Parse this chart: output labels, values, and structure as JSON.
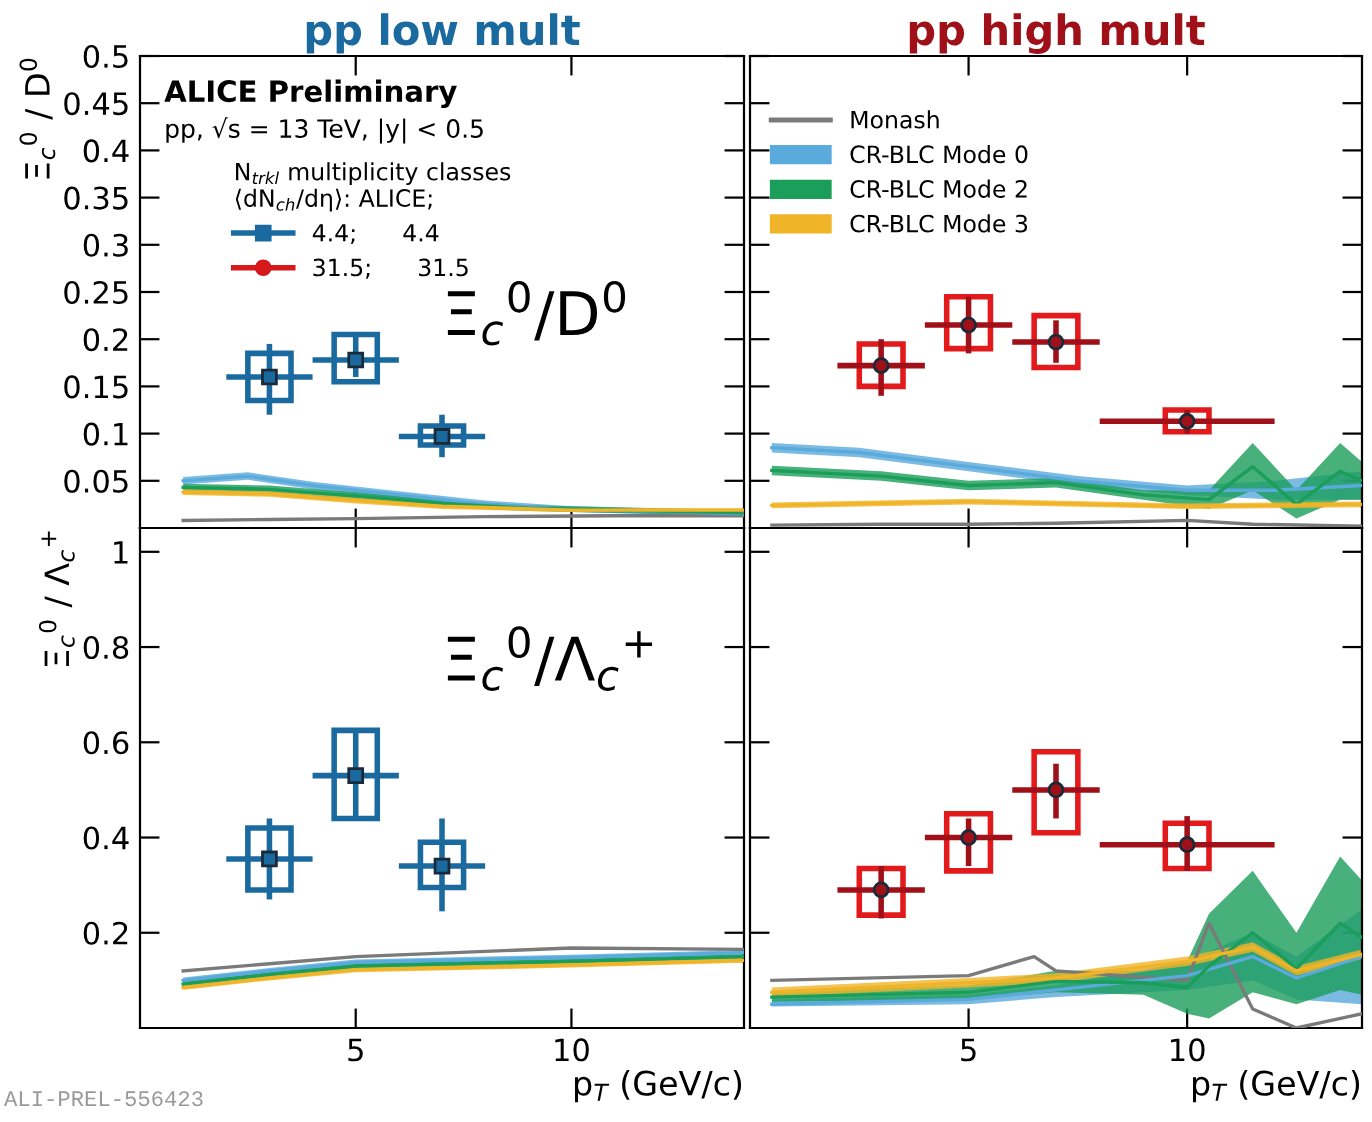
{
  "chart_data": [
    {
      "type": "scatter",
      "title": "pp low mult",
      "ylabel": "Ξ$_{c}$$^{0}$ / D$^{0}$",
      "legend": "top left",
      "legend_title": "N$_{trkl}$ multiplicity classes\n⟨dN$_{ch}$/dη⟩: ALICE;",
      "tick_labels": "y",
      "xlim": [
        0,
        14
      ],
      "xticks": [
        5,
        10
      ],
      "ylim": [
        0,
        0.5
      ],
      "yticks": [
        0.05,
        0.1,
        0.15,
        0.2,
        0.25,
        0.3,
        0.35,
        0.4,
        0.45,
        0.5
      ],
      "annotations": [
        "ALICE Preliminary",
        "pp, √s = 13 TeV, |y| < 0.5",
        "Ξ$_{c}$$^{0}$/D$^{0}$"
      ],
      "series": [
        {
          "type": "bar",
          "color": "#1a6aa0",
          "x": [
            3,
            5,
            7
          ],
          "base": [
            0.135,
            0.155,
            0.088
          ],
          "values": [
            0.05,
            0.05,
            0.02
          ]
        },
        {
          "name": "4.4;      4.4",
          "color": "#1a6aa0",
          "marker": "square",
          "x": [
            3,
            5,
            7
          ],
          "values": [
            0.16,
            0.178,
            0.097
          ],
          "errors": [
            [
              0.12,
              0.195
            ],
            [
              0.16,
              0.205
            ],
            [
              0.075,
              0.12
            ]
          ],
          "xerrors": [
            [
              2,
              4
            ],
            [
              4,
              6
            ],
            [
              6,
              8
            ]
          ]
        },
        {
          "name": "31.5;      31.5",
          "color": "#d7191c",
          "marker": "circle"
        },
        {
          "type": "line",
          "color": "#7a7a7a",
          "x": [
            1,
            3,
            5,
            8,
            11,
            14
          ],
          "values": [
            0.008,
            0.009,
            0.01,
            0.012,
            0.013,
            0.013
          ]
        },
        {
          "type": "line",
          "color": "#5aaadc",
          "x": [
            1,
            2.5,
            4,
            6,
            8,
            10,
            14
          ],
          "values": [
            0.05,
            0.055,
            0.045,
            0.035,
            0.025,
            0.02,
            0.015
          ],
          "lower": [
            0.046,
            0.051,
            0.041,
            0.031,
            0.021,
            0.017,
            0.012
          ],
          "upper": [
            0.054,
            0.059,
            0.049,
            0.039,
            0.029,
            0.023,
            0.018
          ]
        },
        {
          "type": "line",
          "color": "#1a9e5a",
          "x": [
            1,
            3,
            5,
            7,
            9,
            14
          ],
          "values": [
            0.043,
            0.041,
            0.034,
            0.026,
            0.021,
            0.016
          ],
          "lower": [
            0.039,
            0.037,
            0.03,
            0.022,
            0.018,
            0.013
          ],
          "upper": [
            0.047,
            0.045,
            0.038,
            0.03,
            0.024,
            0.019
          ]
        },
        {
          "type": "line",
          "color": "#f0b429",
          "x": [
            1,
            3,
            5,
            7,
            10,
            14
          ],
          "values": [
            0.038,
            0.036,
            0.029,
            0.023,
            0.019,
            0.019
          ],
          "lower": [
            0.035,
            0.033,
            0.026,
            0.02,
            0.017,
            0.017
          ],
          "upper": [
            0.041,
            0.039,
            0.032,
            0.026,
            0.021,
            0.021
          ]
        }
      ]
    },
    {
      "type": "scatter",
      "title": "pp high mult",
      "legend": "top left",
      "tick_labels": false,
      "xlim": [
        0,
        14
      ],
      "xticks": [
        5,
        10
      ],
      "ylim": [
        0,
        0.5
      ],
      "yticks": [
        0.05,
        0.1,
        0.15,
        0.2,
        0.25,
        0.3,
        0.35,
        0.4,
        0.45,
        0.5
      ],
      "series": [
        {
          "type": "bar",
          "color": "#e31a1c",
          "x": [
            3,
            5,
            7,
            10
          ],
          "base": [
            0.15,
            0.19,
            0.17,
            0.102
          ],
          "values": [
            0.045,
            0.055,
            0.055,
            0.023
          ]
        },
        {
          "color": "#a01018",
          "marker": "circle",
          "x": [
            3,
            5,
            7,
            10
          ],
          "values": [
            0.172,
            0.215,
            0.197,
            0.113
          ],
          "errors": [
            [
              0.14,
              0.2
            ],
            [
              0.185,
              0.245
            ],
            [
              0.175,
              0.22
            ],
            [
              0.1,
              0.125
            ]
          ],
          "xerrors": [
            [
              2,
              4
            ],
            [
              4,
              6
            ],
            [
              6,
              8
            ],
            [
              8,
              12
            ]
          ]
        },
        {
          "type": "line",
          "name": "Monash",
          "color": "#7a7a7a",
          "x": [
            0.5,
            3,
            5,
            7,
            10,
            11.5,
            14
          ],
          "values": [
            0.003,
            0.004,
            0.004,
            0.005,
            0.008,
            0.004,
            0.002
          ]
        },
        {
          "type": "line",
          "name": "CR-BLC Mode 0",
          "color": "#5aaadc",
          "x": [
            0.5,
            2.5,
            5,
            7.5,
            10,
            12,
            14
          ],
          "values": [
            0.085,
            0.08,
            0.065,
            0.05,
            0.04,
            0.04,
            0.045
          ],
          "lower": [
            0.08,
            0.075,
            0.06,
            0.045,
            0.035,
            0.03,
            0.03
          ],
          "upper": [
            0.09,
            0.085,
            0.07,
            0.055,
            0.045,
            0.05,
            0.06
          ]
        },
        {
          "type": "line",
          "name": "CR-BLC Mode 2",
          "color": "#1a9e5a",
          "x": [
            0.5,
            3,
            5,
            7,
            9,
            10.5,
            11.5,
            12.5,
            13.5,
            14
          ],
          "values": [
            0.061,
            0.055,
            0.045,
            0.048,
            0.035,
            0.03,
            0.065,
            0.025,
            0.06,
            0.05
          ],
          "lower": [
            0.056,
            0.05,
            0.04,
            0.043,
            0.03,
            0.02,
            0.04,
            0.01,
            0.03,
            0.03
          ],
          "upper": [
            0.066,
            0.06,
            0.05,
            0.053,
            0.04,
            0.04,
            0.09,
            0.04,
            0.09,
            0.07
          ]
        },
        {
          "type": "line",
          "name": "CR-BLC Mode 3",
          "color": "#f0b429",
          "x": [
            0.5,
            5,
            10,
            14
          ],
          "values": [
            0.024,
            0.028,
            0.023,
            0.025
          ],
          "lower": [
            0.021,
            0.025,
            0.02,
            0.022
          ],
          "upper": [
            0.027,
            0.031,
            0.026,
            0.028
          ]
        }
      ]
    },
    {
      "type": "scatter",
      "ylabel": "Ξ$_{c}$$^{0}$ / Λ$_{c}$$^{+}$",
      "xlabel": "p$_{T}$ (GeV/c)",
      "xlim": [
        0,
        14
      ],
      "xticks": [
        5,
        10
      ],
      "ylim": [
        0,
        1.05
      ],
      "yticks": [
        0.2,
        0.4,
        0.6,
        0.8,
        1
      ],
      "annotations": [
        "Ξ$_{c}$$^{0}$/Λ$_{c}$$^{+}$",
        "ALI-PREL-556423"
      ],
      "series": [
        {
          "type": "bar",
          "color": "#1a6aa0",
          "x": [
            3,
            5,
            7
          ],
          "base": [
            0.29,
            0.44,
            0.295
          ],
          "values": [
            0.13,
            0.185,
            0.095
          ]
        },
        {
          "color": "#1a6aa0",
          "marker": "square",
          "x": [
            3,
            5,
            7
          ],
          "values": [
            0.355,
            0.53,
            0.34
          ],
          "errors": [
            [
              0.27,
              0.44
            ],
            [
              0.44,
              0.625
            ],
            [
              0.245,
              0.44
            ]
          ],
          "xerrors": [
            [
              2,
              4
            ],
            [
              4,
              6
            ],
            [
              6,
              8
            ]
          ]
        },
        {
          "type": "line",
          "color": "#7a7a7a",
          "x": [
            1,
            3,
            5,
            10,
            14
          ],
          "values": [
            0.12,
            0.135,
            0.15,
            0.168,
            0.165
          ]
        },
        {
          "type": "line",
          "color": "#5aaadc",
          "x": [
            1,
            3,
            5,
            10,
            14
          ],
          "values": [
            0.1,
            0.12,
            0.138,
            0.148,
            0.158
          ],
          "lower": [
            0.094,
            0.114,
            0.132,
            0.142,
            0.152
          ],
          "upper": [
            0.106,
            0.126,
            0.144,
            0.154,
            0.164
          ]
        },
        {
          "type": "line",
          "color": "#1a9e5a",
          "x": [
            1,
            3,
            5,
            10,
            14
          ],
          "values": [
            0.092,
            0.112,
            0.13,
            0.14,
            0.15
          ],
          "lower": [
            0.087,
            0.107,
            0.125,
            0.135,
            0.145
          ],
          "upper": [
            0.097,
            0.117,
            0.135,
            0.145,
            0.155
          ]
        },
        {
          "type": "line",
          "color": "#f0b429",
          "x": [
            1,
            3,
            5,
            10,
            14
          ],
          "values": [
            0.085,
            0.105,
            0.122,
            0.132,
            0.142
          ],
          "lower": [
            0.08,
            0.1,
            0.117,
            0.127,
            0.137
          ],
          "upper": [
            0.09,
            0.11,
            0.127,
            0.137,
            0.147
          ]
        }
      ]
    },
    {
      "type": "scatter",
      "xlabel": "p$_{T}$ (GeV/c)",
      "tick_labels": "x",
      "xlim": [
        0,
        14
      ],
      "xticks": [
        5,
        10
      ],
      "ylim": [
        0,
        1.05
      ],
      "yticks": [
        0.2,
        0.4,
        0.6,
        0.8,
        1
      ],
      "series": [
        {
          "type": "bar",
          "color": "#e31a1c",
          "x": [
            3,
            5,
            7,
            10
          ],
          "base": [
            0.237,
            0.33,
            0.41,
            0.335
          ],
          "values": [
            0.098,
            0.12,
            0.17,
            0.095
          ]
        },
        {
          "color": "#a01018",
          "marker": "circle",
          "x": [
            3,
            5,
            7,
            10
          ],
          "values": [
            0.29,
            0.4,
            0.5,
            0.385
          ],
          "errors": [
            [
              0.23,
              0.34
            ],
            [
              0.34,
              0.44
            ],
            [
              0.44,
              0.555
            ],
            [
              0.33,
              0.445
            ]
          ],
          "xerrors": [
            [
              2,
              4
            ],
            [
              4,
              6
            ],
            [
              6,
              8
            ],
            [
              8,
              12
            ]
          ]
        },
        {
          "type": "line",
          "color": "#7a7a7a",
          "x": [
            0.5,
            5,
            6.5,
            7,
            10,
            10.5,
            11.5,
            12.5,
            14
          ],
          "values": [
            0.1,
            0.11,
            0.15,
            0.12,
            0.1,
            0.22,
            0.04,
            0.0,
            0.03
          ]
        },
        {
          "type": "line",
          "color": "#5aaadc",
          "x": [
            0.5,
            5,
            7,
            10,
            11.5,
            12.5,
            14
          ],
          "values": [
            0.05,
            0.06,
            0.08,
            0.11,
            0.15,
            0.105,
            0.15
          ],
          "lower": [
            0.045,
            0.05,
            0.065,
            0.08,
            0.1,
            0.06,
            0.05
          ],
          "upper": [
            0.06,
            0.07,
            0.09,
            0.14,
            0.2,
            0.15,
            0.25
          ]
        },
        {
          "type": "line",
          "color": "#1a9e5a",
          "x": [
            0.5,
            5,
            7,
            9,
            10,
            10.5,
            11.5,
            12.5,
            13.5,
            14
          ],
          "values": [
            0.065,
            0.075,
            0.098,
            0.095,
            0.085,
            0.13,
            0.2,
            0.125,
            0.22,
            0.19
          ],
          "lower": [
            0.055,
            0.06,
            0.075,
            0.07,
            0.03,
            0.02,
            0.075,
            0.05,
            0.08,
            0.07
          ],
          "upper": [
            0.075,
            0.09,
            0.12,
            0.12,
            0.14,
            0.24,
            0.33,
            0.2,
            0.36,
            0.31
          ]
        },
        {
          "type": "line",
          "color": "#f0b429",
          "x": [
            0.5,
            5,
            7,
            10,
            11.5,
            12.5,
            14
          ],
          "values": [
            0.075,
            0.095,
            0.105,
            0.14,
            0.17,
            0.12,
            0.155
          ],
          "lower": [
            0.065,
            0.085,
            0.095,
            0.13,
            0.16,
            0.11,
            0.145
          ],
          "upper": [
            0.085,
            0.105,
            0.115,
            0.15,
            0.18,
            0.13,
            0.165
          ]
        }
      ]
    }
  ]
}
